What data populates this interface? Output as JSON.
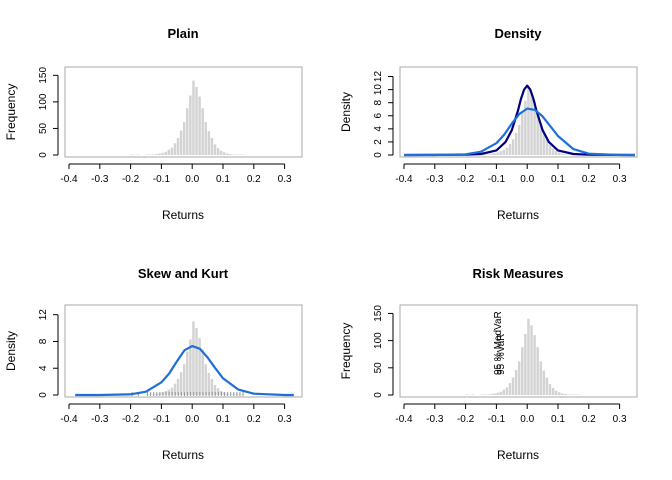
{
  "colors": {
    "bar_fill": "#d3d3d3",
    "frame": "#aaaaaa",
    "density_dark": "#000080",
    "density_blue": "#1e6fd9",
    "tick_text": "#000000"
  },
  "chart_data": [
    {
      "id": "plain",
      "type": "bar",
      "title": "Plain",
      "xlabel": "Returns",
      "ylabel": "Frequency",
      "xlim": [
        -0.4,
        0.35
      ],
      "ylim": [
        0,
        160
      ],
      "xticks": [
        -0.4,
        -0.3,
        -0.2,
        -0.1,
        0.0,
        0.1,
        0.2,
        0.3
      ],
      "xtick_labels": [
        "-0.4",
        "-0.3",
        "-0.2",
        "-0.1",
        "0.0",
        "0.1",
        "0.2",
        "0.3"
      ],
      "yticks": [
        0,
        50,
        100,
        150
      ],
      "ytick_labels": [
        "0",
        "50",
        "100",
        "150"
      ],
      "bin_start": -0.2,
      "bin_width": 0.01,
      "values": [
        1,
        0,
        1,
        0,
        0,
        1,
        1,
        1,
        2,
        3,
        4,
        6,
        10,
        14,
        22,
        32,
        46,
        62,
        88,
        112,
        140,
        128,
        110,
        88,
        62,
        45,
        32,
        20,
        13,
        8,
        5,
        3,
        2,
        1,
        1,
        1,
        1,
        0
      ]
    },
    {
      "id": "density",
      "type": "bar",
      "title": "Density",
      "xlabel": "Returns",
      "ylabel": "Density",
      "xlim": [
        -0.4,
        0.35
      ],
      "ylim": [
        0,
        13
      ],
      "xticks": [
        -0.4,
        -0.3,
        -0.2,
        -0.1,
        0.0,
        0.1,
        0.2,
        0.3
      ],
      "xtick_labels": [
        "-0.4",
        "-0.3",
        "-0.2",
        "-0.1",
        "0.0",
        "0.1",
        "0.2",
        "0.3"
      ],
      "yticks": [
        0,
        2,
        4,
        6,
        8,
        10,
        12
      ],
      "ytick_labels": [
        "0",
        "2",
        "4",
        "6",
        "8",
        "10",
        "12"
      ],
      "bin_start": -0.2,
      "bin_width": 0.01,
      "values": [
        0.1,
        0,
        0.1,
        0,
        0,
        0.1,
        0.1,
        0.1,
        0.2,
        0.3,
        0.4,
        0.6,
        0.8,
        1.1,
        1.7,
        2.4,
        3.4,
        4.6,
        6.5,
        8.3,
        10.5,
        9.6,
        8.2,
        6.5,
        4.6,
        3.3,
        2.4,
        1.5,
        1.0,
        0.6,
        0.4,
        0.2,
        0.1,
        0.1,
        0.1,
        0.1,
        0.1,
        0
      ],
      "curves": [
        {
          "role": "kernel",
          "color": "#000080",
          "x": [
            -0.4,
            -0.2,
            -0.15,
            -0.1,
            -0.07,
            -0.05,
            -0.03,
            -0.02,
            -0.01,
            0.0,
            0.01,
            0.02,
            0.03,
            0.05,
            0.07,
            0.1,
            0.15,
            0.2,
            0.35
          ],
          "y": [
            0,
            0.05,
            0.15,
            0.7,
            2.0,
            3.8,
            6.8,
            8.6,
            10.0,
            10.6,
            10.0,
            8.6,
            6.8,
            3.8,
            2.0,
            0.7,
            0.15,
            0.05,
            0
          ]
        },
        {
          "role": "normal",
          "color": "#1e6fd9",
          "x": [
            -0.4,
            -0.3,
            -0.2,
            -0.15,
            -0.1,
            -0.075,
            -0.05,
            -0.025,
            0.0,
            0.025,
            0.05,
            0.075,
            0.1,
            0.15,
            0.2,
            0.3,
            0.35
          ],
          "y": [
            0,
            0,
            0.1,
            0.5,
            1.8,
            3.1,
            4.8,
            6.3,
            7.1,
            6.9,
            5.9,
            4.4,
            2.9,
            0.9,
            0.2,
            0,
            0
          ]
        }
      ]
    },
    {
      "id": "skew_kurt",
      "type": "bar",
      "title": "Skew and Kurt",
      "xlabel": "Returns",
      "ylabel": "Density",
      "xlim": [
        -0.4,
        0.35
      ],
      "ylim": [
        0,
        13
      ],
      "xticks": [
        -0.4,
        -0.3,
        -0.2,
        -0.1,
        0.0,
        0.1,
        0.2,
        0.3
      ],
      "xtick_labels": [
        "-0.4",
        "-0.3",
        "-0.2",
        "-0.1",
        "0.0",
        "0.1",
        "0.2",
        "0.3"
      ],
      "yticks": [
        0,
        4,
        8,
        12
      ],
      "ytick_labels": [
        "0",
        "4",
        "8",
        "12"
      ],
      "bin_start": -0.2,
      "bin_width": 0.01,
      "values": [
        0.1,
        0,
        0.1,
        0,
        0,
        0.1,
        0.1,
        0.1,
        0.2,
        0.3,
        0.4,
        0.6,
        0.8,
        1.1,
        1.7,
        2.4,
        3.4,
        4.6,
        6.5,
        8.3,
        11.0,
        10.0,
        8.5,
        6.8,
        4.6,
        3.3,
        2.4,
        1.5,
        1.0,
        0.6,
        0.4,
        0.2,
        0.1,
        0.1,
        0.1,
        0.1,
        0.1,
        0
      ],
      "curves": [
        {
          "role": "skew-kurt fit",
          "color": "#1e6fd9",
          "x": [
            -0.38,
            -0.3,
            -0.2,
            -0.15,
            -0.1,
            -0.075,
            -0.05,
            -0.025,
            0.0,
            0.025,
            0.05,
            0.075,
            0.1,
            0.15,
            0.2,
            0.3,
            0.33
          ],
          "y": [
            0,
            0,
            0.1,
            0.5,
            1.9,
            3.2,
            5.0,
            6.7,
            7.3,
            6.9,
            5.6,
            4.0,
            2.5,
            0.8,
            0.2,
            0,
            0
          ]
        }
      ],
      "rug": true
    },
    {
      "id": "risk_measures",
      "type": "bar",
      "title": "Risk Measures",
      "xlabel": "Returns",
      "ylabel": "Frequency",
      "xlim": [
        -0.4,
        0.35
      ],
      "ylim": [
        0,
        160
      ],
      "xticks": [
        -0.4,
        -0.3,
        -0.2,
        -0.1,
        0.0,
        0.1,
        0.2,
        0.3
      ],
      "xtick_labels": [
        "-0.4",
        "-0.3",
        "-0.2",
        "-0.1",
        "0.0",
        "0.1",
        "0.2",
        "0.3"
      ],
      "yticks": [
        0,
        50,
        100,
        150
      ],
      "ytick_labels": [
        "0",
        "50",
        "100",
        "150"
      ],
      "bin_start": -0.2,
      "bin_width": 0.01,
      "values": [
        1,
        0,
        1,
        0,
        0,
        1,
        1,
        1,
        2,
        3,
        4,
        6,
        10,
        14,
        22,
        32,
        46,
        62,
        88,
        112,
        140,
        128,
        110,
        88,
        62,
        45,
        32,
        20,
        13,
        8,
        5,
        3,
        2,
        1,
        1,
        1,
        1,
        0
      ],
      "annotations": [
        {
          "text": "95 % ModVaR",
          "x": -0.085
        },
        {
          "text": "95 %VaR",
          "x": -0.075
        }
      ]
    }
  ]
}
